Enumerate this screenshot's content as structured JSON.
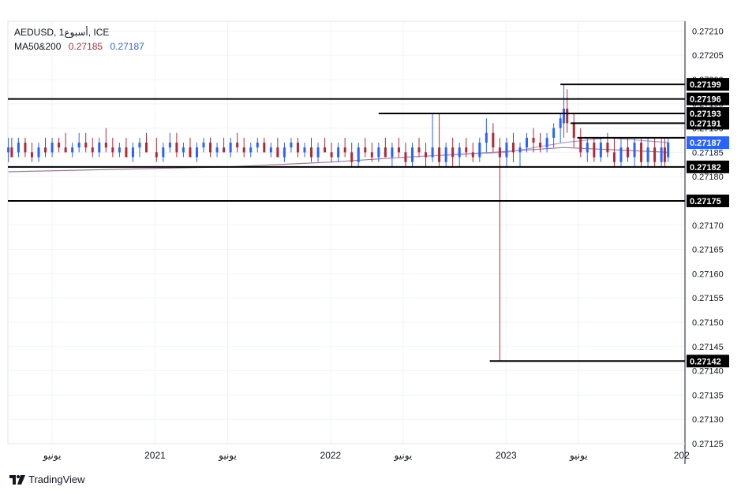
{
  "colors": {
    "up": "#2962ff",
    "down": "#b22833",
    "ma50": "#9c7a9c",
    "ma200": "#b89bd8",
    "line": "#000000",
    "grid": "#f0f3fa",
    "axis_text": "#131722",
    "last_price_bg": "#2962ff",
    "ma50_text": "#b22833",
    "ma200_text": "#2962ff"
  },
  "legend": {
    "symbol": "AEDUSD, 1أسبوع, ICE",
    "ma_label": "MA50&200",
    "ma50_value": "0.27185",
    "ma200_value": "0.27187"
  },
  "brand": {
    "name": "TradingView",
    "icon": "tradingview-logo-icon"
  },
  "chart_data": {
    "type": "candlestick",
    "timeframe": "1 week",
    "ylim": [
      0.27125,
      0.27212
    ],
    "y_ticks": [
      "0.27210",
      "0.27205",
      "0.27200",
      "0.27195",
      "0.27190",
      "0.27185",
      "0.27180",
      "0.27175",
      "0.27170",
      "0.27165",
      "0.27160",
      "0.27155",
      "0.27150",
      "0.27145",
      "0.27140",
      "0.27135",
      "0.27130",
      "0.27125"
    ],
    "x_ticks": [
      {
        "date": "2020-06-01",
        "label": "يونيو"
      },
      {
        "date": "2021-01-01",
        "label": "2021"
      },
      {
        "date": "2021-06-01",
        "label": "يونيو"
      },
      {
        "date": "2022-01-01",
        "label": "2022"
      },
      {
        "date": "2022-06-01",
        "label": "يونيو"
      },
      {
        "date": "2023-01-01",
        "label": "2023"
      },
      {
        "date": "2023-06-01",
        "label": "يونيو"
      },
      {
        "date": "2024-01-01",
        "label": "202"
      }
    ],
    "x_range": [
      "2020-03-01",
      "2024-01-08"
    ],
    "last_price": "0.27187",
    "horizontal_lines": [
      {
        "value": 0.27199,
        "label": "0.27199",
        "from": "2023-04-24"
      },
      {
        "value": 0.27196,
        "label": "0.27196",
        "from": "2020-03-01"
      },
      {
        "value": 0.27193,
        "label": "0.27193",
        "from": "2022-04-11"
      },
      {
        "value": 0.27191,
        "label": "0.27191",
        "from": "2023-05-15"
      },
      {
        "value": 0.27188,
        "label": "",
        "from": "2023-05-29"
      },
      {
        "value": 0.27182,
        "label": "0.27182",
        "from": "2020-03-01"
      },
      {
        "value": 0.27175,
        "label": "0.27175",
        "from": "2020-03-01"
      },
      {
        "value": 0.27142,
        "label": "0.27142",
        "from": "2022-11-28"
      }
    ],
    "candles": [
      {
        "date": "2020-03-02",
        "o": 0.27185,
        "h": 0.27188,
        "l": 0.27183,
        "c": 0.27186
      },
      {
        "date": "2020-03-09",
        "o": 0.27186,
        "h": 0.27188,
        "l": 0.27184,
        "c": 0.27184
      },
      {
        "date": "2020-03-23",
        "o": 0.27185,
        "h": 0.27188,
        "l": 0.27184,
        "c": 0.27187
      },
      {
        "date": "2020-04-06",
        "o": 0.27187,
        "h": 0.27188,
        "l": 0.27184,
        "c": 0.27185
      },
      {
        "date": "2020-04-20",
        "o": 0.27185,
        "h": 0.27187,
        "l": 0.27183,
        "c": 0.27184
      },
      {
        "date": "2020-05-04",
        "o": 0.27184,
        "h": 0.27187,
        "l": 0.27183,
        "c": 0.27186
      },
      {
        "date": "2020-05-18",
        "o": 0.27186,
        "h": 0.27188,
        "l": 0.27184,
        "c": 0.27185
      },
      {
        "date": "2020-06-01",
        "o": 0.27185,
        "h": 0.27188,
        "l": 0.27184,
        "c": 0.27187
      },
      {
        "date": "2020-06-15",
        "o": 0.27187,
        "h": 0.27188,
        "l": 0.27185,
        "c": 0.27186
      },
      {
        "date": "2020-06-29",
        "o": 0.27186,
        "h": 0.27189,
        "l": 0.27185,
        "c": 0.27185
      },
      {
        "date": "2020-07-13",
        "o": 0.27185,
        "h": 0.27187,
        "l": 0.27184,
        "c": 0.27186
      },
      {
        "date": "2020-07-27",
        "o": 0.27186,
        "h": 0.27189,
        "l": 0.27185,
        "c": 0.27187
      },
      {
        "date": "2020-08-10",
        "o": 0.27187,
        "h": 0.27189,
        "l": 0.27185,
        "c": 0.27186
      },
      {
        "date": "2020-08-24",
        "o": 0.27186,
        "h": 0.27188,
        "l": 0.27184,
        "c": 0.27185
      },
      {
        "date": "2020-09-07",
        "o": 0.27185,
        "h": 0.27188,
        "l": 0.27184,
        "c": 0.27187
      },
      {
        "date": "2020-09-21",
        "o": 0.27187,
        "h": 0.2719,
        "l": 0.27185,
        "c": 0.27186
      },
      {
        "date": "2020-10-05",
        "o": 0.27186,
        "h": 0.27188,
        "l": 0.27184,
        "c": 0.27185
      },
      {
        "date": "2020-10-19",
        "o": 0.27185,
        "h": 0.27187,
        "l": 0.27184,
        "c": 0.27186
      },
      {
        "date": "2020-11-02",
        "o": 0.27186,
        "h": 0.27188,
        "l": 0.27184,
        "c": 0.27184
      },
      {
        "date": "2020-11-16",
        "o": 0.27184,
        "h": 0.27187,
        "l": 0.27183,
        "c": 0.27186
      },
      {
        "date": "2020-11-30",
        "o": 0.27186,
        "h": 0.27188,
        "l": 0.27184,
        "c": 0.27187
      },
      {
        "date": "2020-12-14",
        "o": 0.27187,
        "h": 0.27189,
        "l": 0.27185,
        "c": 0.27185
      },
      {
        "date": "2021-01-04",
        "o": 0.27185,
        "h": 0.27188,
        "l": 0.27183,
        "c": 0.27184
      },
      {
        "date": "2021-01-18",
        "o": 0.27184,
        "h": 0.27187,
        "l": 0.27183,
        "c": 0.27186
      },
      {
        "date": "2021-02-01",
        "o": 0.27186,
        "h": 0.27189,
        "l": 0.27185,
        "c": 0.27187
      },
      {
        "date": "2021-02-15",
        "o": 0.27187,
        "h": 0.27189,
        "l": 0.27184,
        "c": 0.27185
      },
      {
        "date": "2021-03-01",
        "o": 0.27185,
        "h": 0.27187,
        "l": 0.27184,
        "c": 0.27186
      },
      {
        "date": "2021-03-15",
        "o": 0.27186,
        "h": 0.27188,
        "l": 0.27184,
        "c": 0.27184
      },
      {
        "date": "2021-03-29",
        "o": 0.27184,
        "h": 0.27187,
        "l": 0.27183,
        "c": 0.27186
      },
      {
        "date": "2021-04-12",
        "o": 0.27186,
        "h": 0.27188,
        "l": 0.27185,
        "c": 0.27187
      },
      {
        "date": "2021-04-26",
        "o": 0.27187,
        "h": 0.27188,
        "l": 0.27184,
        "c": 0.27185
      },
      {
        "date": "2021-05-10",
        "o": 0.27185,
        "h": 0.27187,
        "l": 0.27184,
        "c": 0.27186
      },
      {
        "date": "2021-05-24",
        "o": 0.27186,
        "h": 0.27188,
        "l": 0.27185,
        "c": 0.27185
      },
      {
        "date": "2021-06-07",
        "o": 0.27185,
        "h": 0.27188,
        "l": 0.27184,
        "c": 0.27187
      },
      {
        "date": "2021-06-21",
        "o": 0.27187,
        "h": 0.27189,
        "l": 0.27185,
        "c": 0.27186
      },
      {
        "date": "2021-07-05",
        "o": 0.27186,
        "h": 0.27188,
        "l": 0.27184,
        "c": 0.27185
      },
      {
        "date": "2021-07-19",
        "o": 0.27185,
        "h": 0.27187,
        "l": 0.27184,
        "c": 0.27186
      },
      {
        "date": "2021-08-02",
        "o": 0.27186,
        "h": 0.27188,
        "l": 0.27185,
        "c": 0.27187
      },
      {
        "date": "2021-08-16",
        "o": 0.27187,
        "h": 0.27188,
        "l": 0.27185,
        "c": 0.27185
      },
      {
        "date": "2021-08-30",
        "o": 0.27185,
        "h": 0.27187,
        "l": 0.27184,
        "c": 0.27186
      },
      {
        "date": "2021-09-13",
        "o": 0.27186,
        "h": 0.27188,
        "l": 0.27184,
        "c": 0.27184
      },
      {
        "date": "2021-09-27",
        "o": 0.27184,
        "h": 0.27187,
        "l": 0.27183,
        "c": 0.27186
      },
      {
        "date": "2021-10-11",
        "o": 0.27186,
        "h": 0.27188,
        "l": 0.27185,
        "c": 0.27187
      },
      {
        "date": "2021-10-25",
        "o": 0.27187,
        "h": 0.27188,
        "l": 0.27184,
        "c": 0.27185
      },
      {
        "date": "2021-11-08",
        "o": 0.27185,
        "h": 0.27187,
        "l": 0.27184,
        "c": 0.27186
      },
      {
        "date": "2021-11-22",
        "o": 0.27186,
        "h": 0.27188,
        "l": 0.27183,
        "c": 0.27184
      },
      {
        "date": "2021-12-06",
        "o": 0.27184,
        "h": 0.27187,
        "l": 0.27183,
        "c": 0.27186
      },
      {
        "date": "2021-12-20",
        "o": 0.27186,
        "h": 0.27188,
        "l": 0.27185,
        "c": 0.27185
      },
      {
        "date": "2022-01-03",
        "o": 0.27185,
        "h": 0.27187,
        "l": 0.27183,
        "c": 0.27184
      },
      {
        "date": "2022-01-17",
        "o": 0.27184,
        "h": 0.27187,
        "l": 0.27183,
        "c": 0.27186
      },
      {
        "date": "2022-01-31",
        "o": 0.27186,
        "h": 0.27188,
        "l": 0.27184,
        "c": 0.27185
      },
      {
        "date": "2022-02-14",
        "o": 0.27185,
        "h": 0.27187,
        "l": 0.27182,
        "c": 0.27183
      },
      {
        "date": "2022-02-28",
        "o": 0.27183,
        "h": 0.27187,
        "l": 0.27182,
        "c": 0.27186
      },
      {
        "date": "2022-03-14",
        "o": 0.27186,
        "h": 0.27188,
        "l": 0.27184,
        "c": 0.27185
      },
      {
        "date": "2022-03-28",
        "o": 0.27185,
        "h": 0.27187,
        "l": 0.27183,
        "c": 0.27184
      },
      {
        "date": "2022-04-11",
        "o": 0.27184,
        "h": 0.27187,
        "l": 0.27183,
        "c": 0.27186
      },
      {
        "date": "2022-04-25",
        "o": 0.27186,
        "h": 0.27188,
        "l": 0.27184,
        "c": 0.27184
      },
      {
        "date": "2022-05-09",
        "o": 0.27184,
        "h": 0.27187,
        "l": 0.27182,
        "c": 0.27186
      },
      {
        "date": "2022-05-23",
        "o": 0.27186,
        "h": 0.27188,
        "l": 0.27184,
        "c": 0.27185
      },
      {
        "date": "2022-06-06",
        "o": 0.27185,
        "h": 0.27187,
        "l": 0.27182,
        "c": 0.27183
      },
      {
        "date": "2022-06-20",
        "o": 0.27183,
        "h": 0.27187,
        "l": 0.27182,
        "c": 0.27186
      },
      {
        "date": "2022-07-04",
        "o": 0.27186,
        "h": 0.27188,
        "l": 0.27184,
        "c": 0.27185
      },
      {
        "date": "2022-07-18",
        "o": 0.27185,
        "h": 0.27187,
        "l": 0.27182,
        "c": 0.27184
      },
      {
        "date": "2022-08-01",
        "o": 0.27184,
        "h": 0.27193,
        "l": 0.27183,
        "c": 0.27186
      },
      {
        "date": "2022-08-15",
        "o": 0.27186,
        "h": 0.27193,
        "l": 0.27182,
        "c": 0.27183
      },
      {
        "date": "2022-08-29",
        "o": 0.27183,
        "h": 0.27187,
        "l": 0.27182,
        "c": 0.27186
      },
      {
        "date": "2022-09-12",
        "o": 0.27186,
        "h": 0.27188,
        "l": 0.27182,
        "c": 0.27184
      },
      {
        "date": "2022-09-26",
        "o": 0.27184,
        "h": 0.27187,
        "l": 0.27182,
        "c": 0.27186
      },
      {
        "date": "2022-10-10",
        "o": 0.27186,
        "h": 0.27188,
        "l": 0.27184,
        "c": 0.27185
      },
      {
        "date": "2022-10-24",
        "o": 0.27185,
        "h": 0.27187,
        "l": 0.27183,
        "c": 0.27184
      },
      {
        "date": "2022-11-07",
        "o": 0.27184,
        "h": 0.27188,
        "l": 0.27183,
        "c": 0.27187
      },
      {
        "date": "2022-11-21",
        "o": 0.27187,
        "h": 0.27192,
        "l": 0.27185,
        "c": 0.27189
      },
      {
        "date": "2022-12-05",
        "o": 0.27189,
        "h": 0.27191,
        "l": 0.27185,
        "c": 0.27186
      },
      {
        "date": "2022-12-19",
        "o": 0.27186,
        "h": 0.27188,
        "l": 0.27142,
        "c": 0.27184
      },
      {
        "date": "2023-01-02",
        "o": 0.27184,
        "h": 0.27188,
        "l": 0.27182,
        "c": 0.27187
      },
      {
        "date": "2023-01-16",
        "o": 0.27187,
        "h": 0.27189,
        "l": 0.27183,
        "c": 0.27185
      },
      {
        "date": "2023-01-30",
        "o": 0.27185,
        "h": 0.27187,
        "l": 0.27182,
        "c": 0.27186
      },
      {
        "date": "2023-02-13",
        "o": 0.27186,
        "h": 0.27189,
        "l": 0.27185,
        "c": 0.27188
      },
      {
        "date": "2023-02-27",
        "o": 0.27188,
        "h": 0.2719,
        "l": 0.27185,
        "c": 0.27187
      },
      {
        "date": "2023-03-13",
        "o": 0.27187,
        "h": 0.27189,
        "l": 0.27185,
        "c": 0.27186
      },
      {
        "date": "2023-03-27",
        "o": 0.27186,
        "h": 0.27189,
        "l": 0.27185,
        "c": 0.27188
      },
      {
        "date": "2023-04-10",
        "o": 0.27188,
        "h": 0.27191,
        "l": 0.27186,
        "c": 0.2719
      },
      {
        "date": "2023-04-24",
        "o": 0.2719,
        "h": 0.27193,
        "l": 0.27187,
        "c": 0.27192
      },
      {
        "date": "2023-05-01",
        "o": 0.27191,
        "h": 0.27199,
        "l": 0.27188,
        "c": 0.27194
      },
      {
        "date": "2023-05-08",
        "o": 0.27194,
        "h": 0.27198,
        "l": 0.27189,
        "c": 0.27191
      },
      {
        "date": "2023-05-22",
        "o": 0.27191,
        "h": 0.27193,
        "l": 0.27186,
        "c": 0.27188
      },
      {
        "date": "2023-06-05",
        "o": 0.27188,
        "h": 0.2719,
        "l": 0.27184,
        "c": 0.27185
      },
      {
        "date": "2023-06-19",
        "o": 0.27185,
        "h": 0.27188,
        "l": 0.27183,
        "c": 0.27187
      },
      {
        "date": "2023-07-03",
        "o": 0.27187,
        "h": 0.27188,
        "l": 0.27183,
        "c": 0.27184
      },
      {
        "date": "2023-07-17",
        "o": 0.27184,
        "h": 0.27188,
        "l": 0.27183,
        "c": 0.27187
      },
      {
        "date": "2023-07-31",
        "o": 0.27187,
        "h": 0.27189,
        "l": 0.27184,
        "c": 0.27185
      },
      {
        "date": "2023-08-14",
        "o": 0.27185,
        "h": 0.27188,
        "l": 0.27182,
        "c": 0.27183
      },
      {
        "date": "2023-08-28",
        "o": 0.27183,
        "h": 0.27188,
        "l": 0.27182,
        "c": 0.27186
      },
      {
        "date": "2023-09-11",
        "o": 0.27186,
        "h": 0.27188,
        "l": 0.27183,
        "c": 0.27184
      },
      {
        "date": "2023-09-25",
        "o": 0.27184,
        "h": 0.27188,
        "l": 0.27182,
        "c": 0.27187
      },
      {
        "date": "2023-10-09",
        "o": 0.27187,
        "h": 0.27188,
        "l": 0.27182,
        "c": 0.27183
      },
      {
        "date": "2023-10-23",
        "o": 0.27183,
        "h": 0.27188,
        "l": 0.27182,
        "c": 0.27186
      },
      {
        "date": "2023-11-06",
        "o": 0.27186,
        "h": 0.27188,
        "l": 0.27182,
        "c": 0.27183
      },
      {
        "date": "2023-11-20",
        "o": 0.27183,
        "h": 0.27188,
        "l": 0.27182,
        "c": 0.27186
      },
      {
        "date": "2023-11-27",
        "o": 0.27186,
        "h": 0.27188,
        "l": 0.27182,
        "c": 0.27183
      },
      {
        "date": "2023-12-04",
        "o": 0.27184,
        "h": 0.27188,
        "l": 0.27183,
        "c": 0.27187
      }
    ],
    "ma50": [
      {
        "date": "2020-03-02",
        "v": 0.27181
      },
      {
        "date": "2021-06-01",
        "v": 0.27182
      },
      {
        "date": "2022-01-03",
        "v": 0.27183
      },
      {
        "date": "2022-06-06",
        "v": 0.27184
      },
      {
        "date": "2022-12-05",
        "v": 0.27185
      },
      {
        "date": "2023-05-01",
        "v": 0.27186
      },
      {
        "date": "2023-12-04",
        "v": 0.27185
      }
    ],
    "ma200": [
      {
        "date": "2022-06-06",
        "v": 0.27184
      },
      {
        "date": "2023-01-02",
        "v": 0.27185
      },
      {
        "date": "2023-05-01",
        "v": 0.27187
      },
      {
        "date": "2023-08-01",
        "v": 0.27188
      },
      {
        "date": "2023-12-04",
        "v": 0.27187
      }
    ]
  }
}
